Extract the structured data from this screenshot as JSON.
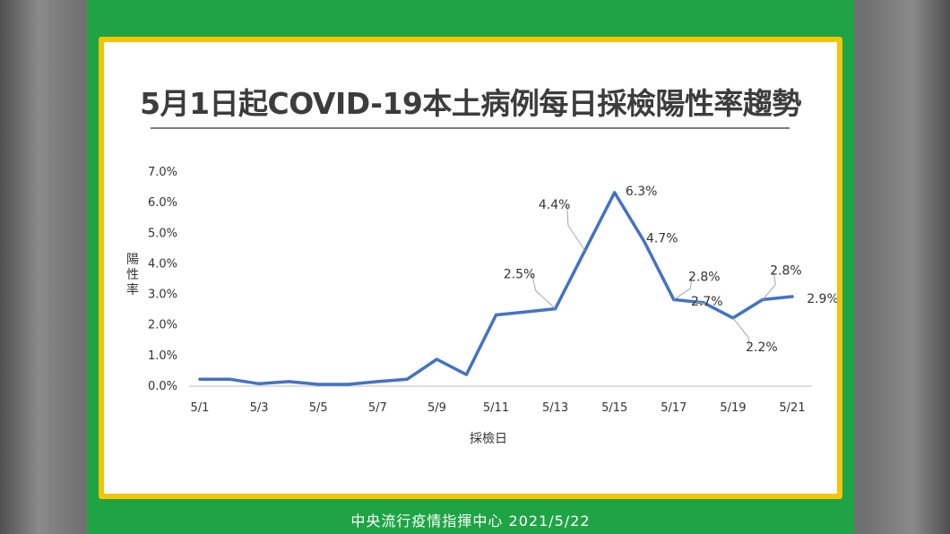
{
  "footer": {
    "org": "中央流行疫情指揮中心",
    "date": "2021/5/22"
  },
  "chart_data": {
    "type": "line",
    "title": "5月1日起COVID-19本土病例每日採檢陽性率趨勢",
    "xlabel": "採檢日",
    "ylabel": "陽性率",
    "ylim": [
      0,
      7
    ],
    "ytick_labels": [
      "0.0%",
      "1.0%",
      "2.0%",
      "3.0%",
      "4.0%",
      "5.0%",
      "6.0%",
      "7.0%"
    ],
    "x": [
      "5/1",
      "5/2",
      "5/3",
      "5/4",
      "5/5",
      "5/6",
      "5/7",
      "5/8",
      "5/9",
      "5/10",
      "5/11",
      "5/12",
      "5/13",
      "5/14",
      "5/15",
      "5/16",
      "5/17",
      "5/18",
      "5/19",
      "5/20",
      "5/21"
    ],
    "xtick_labels": [
      "5/1",
      "5/3",
      "5/5",
      "5/7",
      "5/9",
      "5/11",
      "5/13",
      "5/15",
      "5/17",
      "5/19",
      "5/21"
    ],
    "series": [
      {
        "color": "#4472c4",
        "values": [
          0.2,
          0.2,
          0.05,
          0.12,
          0.03,
          0.03,
          0.12,
          0.2,
          0.85,
          0.35,
          2.3,
          2.4,
          2.5,
          4.4,
          6.3,
          4.7,
          2.8,
          2.7,
          2.2,
          2.8,
          2.9
        ]
      }
    ],
    "annotations": [
      {
        "text": "2.5%",
        "x": "5/13"
      },
      {
        "text": "4.4%",
        "x": "5/14"
      },
      {
        "text": "6.3%",
        "x": "5/15"
      },
      {
        "text": "4.7%",
        "x": "5/16"
      },
      {
        "text": "2.8%",
        "x": "5/17"
      },
      {
        "text": "2.7%",
        "x": "5/18"
      },
      {
        "text": "2.2%",
        "x": "5/19"
      },
      {
        "text": "2.8%",
        "x": "5/20"
      },
      {
        "text": "2.9%",
        "x": "5/21"
      }
    ],
    "grid": false,
    "legend": "none"
  }
}
